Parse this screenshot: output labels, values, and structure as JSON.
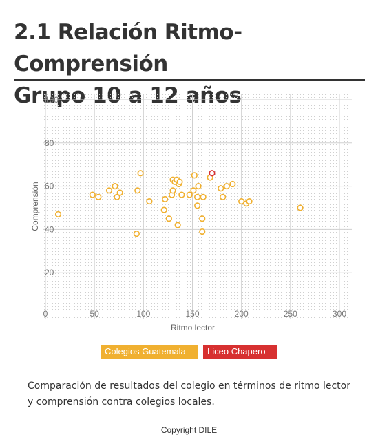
{
  "page": {
    "title_line1": "2.1 Relación Ritmo-Comprensión",
    "title_line2": "Grupo 10 a 12 años",
    "description": "Comparación de resultados del colegio en términos de ritmo lector y comprensión contra colegios locales.",
    "copyright": "Copyright DILE"
  },
  "chart_data": {
    "type": "scatter",
    "xlabel": "Ritmo lector",
    "ylabel": "Comprensión",
    "xlim": [
      0,
      300
    ],
    "ylim": [
      0,
      100
    ],
    "xticks": [
      0,
      50,
      100,
      150,
      200,
      250,
      300
    ],
    "yticks": [
      20,
      40,
      60,
      80,
      100
    ],
    "grid": true,
    "legend_position": "bottom",
    "series": [
      {
        "name": "Colegios Guatemala",
        "color": "#f0b030",
        "points": [
          [
            13,
            47
          ],
          [
            48,
            56
          ],
          [
            54,
            55
          ],
          [
            65,
            58
          ],
          [
            71,
            60
          ],
          [
            73,
            55
          ],
          [
            76,
            57
          ],
          [
            93,
            38
          ],
          [
            94,
            58
          ],
          [
            97,
            66
          ],
          [
            106,
            53
          ],
          [
            121,
            49
          ],
          [
            122,
            54
          ],
          [
            126,
            45
          ],
          [
            129,
            56
          ],
          [
            130,
            63
          ],
          [
            130,
            58
          ],
          [
            132,
            62
          ],
          [
            134,
            63
          ],
          [
            135,
            42
          ],
          [
            136,
            61
          ],
          [
            137,
            62
          ],
          [
            139,
            56
          ],
          [
            147,
            56
          ],
          [
            151,
            58
          ],
          [
            152,
            65
          ],
          [
            155,
            55
          ],
          [
            155,
            51
          ],
          [
            156,
            60
          ],
          [
            160,
            45
          ],
          [
            160,
            39
          ],
          [
            161,
            55
          ],
          [
            168,
            64
          ],
          [
            179,
            59
          ],
          [
            181,
            55
          ],
          [
            185,
            60
          ],
          [
            191,
            61
          ],
          [
            200,
            53
          ],
          [
            205,
            52
          ],
          [
            208,
            53
          ],
          [
            260,
            50
          ]
        ]
      },
      {
        "name": "Liceo Chapero",
        "color": "#d73030",
        "points": [
          [
            170,
            66
          ]
        ]
      }
    ]
  }
}
